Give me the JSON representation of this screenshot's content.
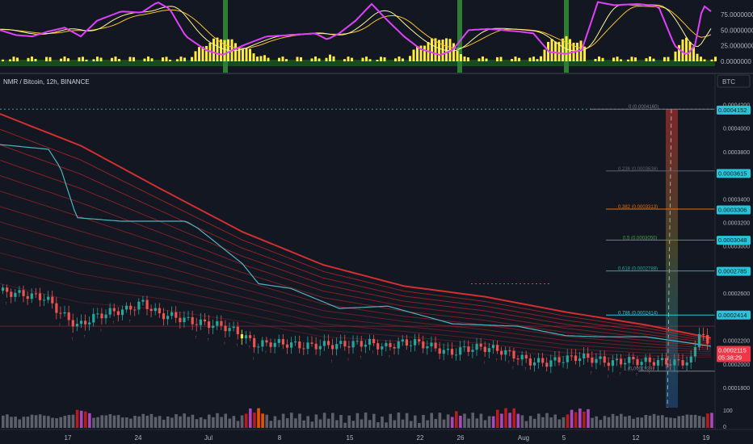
{
  "indicator_axis": {
    "labels": [
      "75.0000000",
      "50.0000000",
      "25.0000000",
      "0.0000000"
    ],
    "values": [
      75,
      50,
      25,
      0
    ]
  },
  "symbol_title": "NMR / Bitcoin, 12h, BINANCE",
  "currency_button": "BTC",
  "price_axis": {
    "labels": [
      "0.0004200",
      "0.0004000",
      "0.0003800",
      "0.0003600",
      "0.0003400",
      "0.0003200",
      "0.0003000",
      "0.0002800",
      "0.0002600",
      "0.0002400",
      "0.0002200",
      "0.0002000",
      "0.0001800"
    ],
    "values": [
      0.00042,
      0.0004,
      0.00038,
      0.00036,
      0.00034,
      0.00032,
      0.0003,
      0.00028,
      0.00026,
      0.00024,
      0.00022,
      0.0002,
      0.00018
    ]
  },
  "price_badges": [
    {
      "text": "0.0004152",
      "value": 0.0004152,
      "color": "#26c6da"
    },
    {
      "text": "0.0003615",
      "value": 0.0003615,
      "color": "#26c6da"
    },
    {
      "text": "0.0003306",
      "value": 0.0003306,
      "color": "#26c6da"
    },
    {
      "text": "0.0003048",
      "value": 0.0003048,
      "color": "#26c6da"
    },
    {
      "text": "0.0002785",
      "value": 0.0002785,
      "color": "#26c6da"
    },
    {
      "text": "0.0002414",
      "value": 0.0002414,
      "color": "#26c6da"
    }
  ],
  "current_price": {
    "value_text": "0.0002115",
    "countdown": "05:38:29",
    "value": 0.0002115,
    "color": "#f23645"
  },
  "fib_levels": [
    {
      "label": "0 (0.0004160)",
      "value": 0.000416,
      "color": "#787b86"
    },
    {
      "label": "0.236 (0.0003636)",
      "value": 0.0003636,
      "color": "#5d606b"
    },
    {
      "label": "0.382 (0.0003313)",
      "value": 0.0003313,
      "color": "#ef6c00"
    },
    {
      "label": "0.5 (0.0003050)",
      "value": 0.000305,
      "color": "#43a047"
    },
    {
      "label": "0.618 (0.0002788)",
      "value": 0.0002788,
      "color": "#26a69a"
    },
    {
      "label": "0.786 (0.0002414)",
      "value": 0.0002414,
      "color": "#26c6da"
    },
    {
      "label": "1 (0.0001939)",
      "value": 0.0001939,
      "color": "#787b86"
    }
  ],
  "volume_axis": {
    "labels": [
      "100",
      "0"
    ],
    "values": [
      100,
      0
    ]
  },
  "time_axis": {
    "labels": [
      "17",
      "24",
      "Jul",
      "8",
      "15",
      "22",
      "26",
      "Aug",
      "5",
      "12",
      "19"
    ],
    "x": [
      84,
      171,
      258,
      346,
      433,
      520,
      570,
      648,
      698,
      787,
      874
    ]
  },
  "colors": {
    "up": "#26a69a",
    "down": "#ef5350",
    "ema": "#d32f2f",
    "signal_line": "#4fb3bf",
    "rsi": "#e040fb",
    "hist": "#ffeb3b"
  },
  "chart_data": {
    "type": "candlestick",
    "symbol": "NMR / Bitcoin, 12h, BINANCE",
    "y_range": [
      0.000168,
      0.000424
    ],
    "price_path": [
      [
        0,
        0.000262
      ],
      [
        20,
        0.00026
      ],
      [
        40,
        0.000258
      ],
      [
        60,
        0.000256
      ],
      [
        80,
        0.000242
      ],
      [
        100,
        0.000232
      ],
      [
        120,
        0.00024
      ],
      [
        140,
        0.000244
      ],
      [
        160,
        0.000246
      ],
      [
        180,
        0.000252
      ],
      [
        200,
        0.000242
      ],
      [
        220,
        0.00024
      ],
      [
        240,
        0.000236
      ],
      [
        260,
        0.000234
      ],
      [
        280,
        0.000232
      ],
      [
        300,
        0.000226
      ],
      [
        320,
        0.000216
      ],
      [
        340,
        0.000218
      ],
      [
        360,
        0.000217
      ],
      [
        380,
        0.000215
      ],
      [
        400,
        0.000216
      ],
      [
        420,
        0.000216
      ],
      [
        440,
        0.000217
      ],
      [
        460,
        0.000218
      ],
      [
        480,
        0.000214
      ],
      [
        500,
        0.000218
      ],
      [
        520,
        0.000218
      ],
      [
        540,
        0.000214
      ],
      [
        560,
        0.000209
      ],
      [
        580,
        0.000213
      ],
      [
        600,
        0.000214
      ],
      [
        620,
        0.000212
      ],
      [
        640,
        0.000207
      ],
      [
        660,
        0.000202
      ],
      [
        680,
        0.000201
      ],
      [
        700,
        0.000204
      ],
      [
        720,
        0.000206
      ],
      [
        740,
        0.000204
      ],
      [
        760,
        0.000201
      ],
      [
        780,
        0.000203
      ],
      [
        800,
        0.000202
      ],
      [
        820,
        0.000202
      ],
      [
        840,
        0.000201
      ],
      [
        860,
        0.000203
      ],
      [
        870,
        0.000232
      ],
      [
        880,
        0.000212
      ]
    ],
    "ema_band_top": [
      [
        0,
        0.000412
      ],
      [
        100,
        0.000385
      ],
      [
        200,
        0.000348
      ],
      [
        300,
        0.000312
      ],
      [
        400,
        0.000284
      ],
      [
        500,
        0.000266
      ],
      [
        600,
        0.000257
      ],
      [
        700,
        0.000244
      ],
      [
        800,
        0.000233
      ],
      [
        880,
        0.000222
      ]
    ],
    "ema_band_bottom": [
      [
        0,
        0.000268
      ],
      [
        100,
        0.000252
      ],
      [
        200,
        0.000246
      ],
      [
        300,
        0.000236
      ],
      [
        400,
        0.000223
      ],
      [
        500,
        0.000219
      ],
      [
        600,
        0.000213
      ],
      [
        700,
        0.000206
      ],
      [
        800,
        0.000204
      ],
      [
        880,
        0.000206
      ]
    ],
    "signal_line": [
      [
        0,
        0.000386
      ],
      [
        60,
        0.000382
      ],
      [
        75,
        0.000366
      ],
      [
        95,
        0.000324
      ],
      [
        150,
        0.000321
      ],
      [
        230,
        0.000321
      ],
      [
        245,
        0.000315
      ],
      [
        300,
        0.000285
      ],
      [
        320,
        0.000268
      ],
      [
        360,
        0.000264
      ],
      [
        420,
        0.000247
      ],
      [
        480,
        0.000249
      ],
      [
        560,
        0.000234
      ],
      [
        640,
        0.000232
      ],
      [
        700,
        0.000224
      ],
      [
        740,
        0.000223
      ],
      [
        800,
        0.000223
      ],
      [
        880,
        0.000215
      ]
    ],
    "rsi": [
      [
        0,
        50
      ],
      [
        20,
        42
      ],
      [
        40,
        40
      ],
      [
        60,
        48
      ],
      [
        80,
        54
      ],
      [
        100,
        40
      ],
      [
        120,
        65
      ],
      [
        150,
        80
      ],
      [
        175,
        78
      ],
      [
        195,
        95
      ],
      [
        210,
        84
      ],
      [
        230,
        40
      ],
      [
        255,
        18
      ],
      [
        275,
        10
      ],
      [
        300,
        25
      ],
      [
        330,
        40
      ],
      [
        360,
        42
      ],
      [
        390,
        45
      ],
      [
        405,
        35
      ],
      [
        420,
        45
      ],
      [
        440,
        65
      ],
      [
        460,
        92
      ],
      [
        480,
        65
      ],
      [
        500,
        40
      ],
      [
        520,
        20
      ],
      [
        545,
        10
      ],
      [
        560,
        18
      ],
      [
        580,
        50
      ],
      [
        605,
        52
      ],
      [
        640,
        48
      ],
      [
        660,
        45
      ],
      [
        680,
        15
      ],
      [
        700,
        12
      ],
      [
        720,
        18
      ],
      [
        740,
        95
      ],
      [
        760,
        90
      ],
      [
        790,
        92
      ],
      [
        815,
        88
      ],
      [
        835,
        25
      ],
      [
        850,
        10
      ],
      [
        860,
        25
      ],
      [
        870,
        90
      ],
      [
        880,
        80
      ]
    ],
    "histogram_color": "#ffeb3b",
    "fib_range": [
      0.0001939,
      0.000416
    ]
  }
}
